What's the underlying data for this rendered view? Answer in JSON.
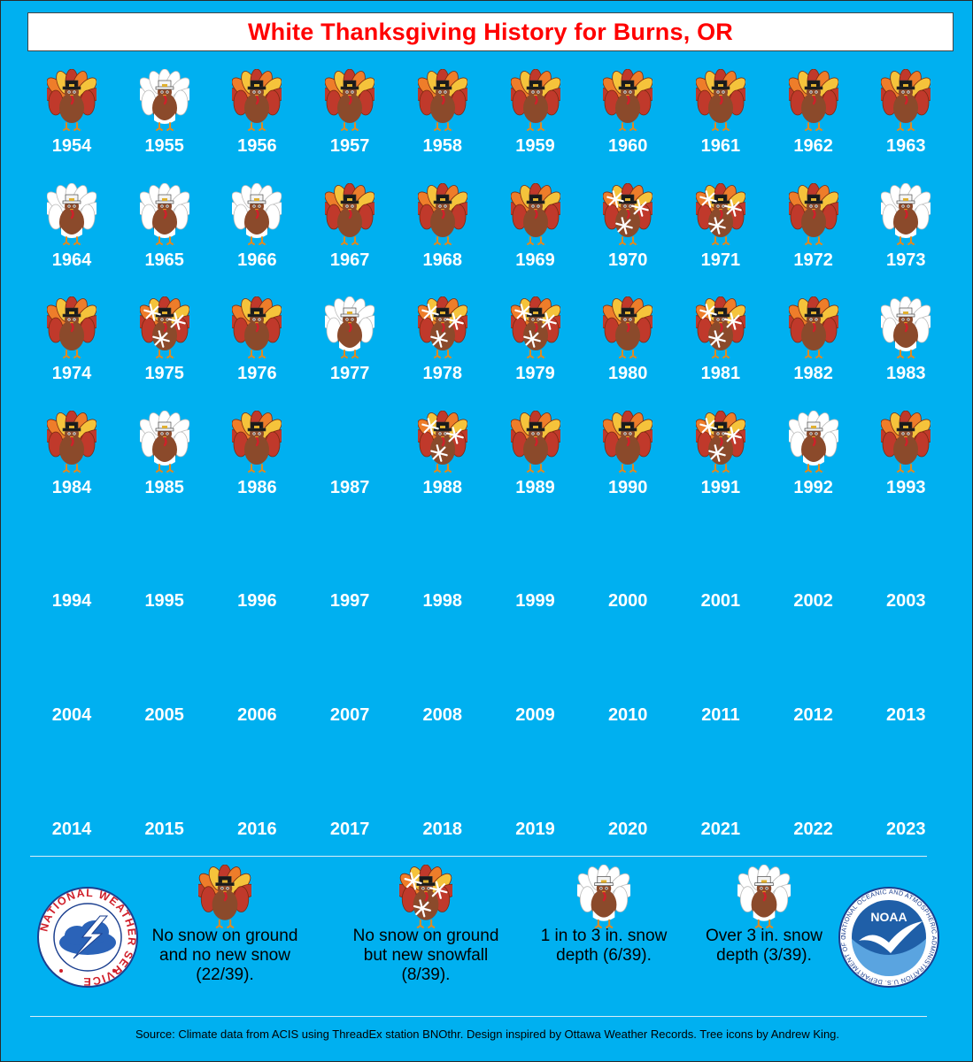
{
  "title": "White Thanksgiving History for Burns, OR",
  "years": [
    {
      "year": "1954",
      "cat": "none"
    },
    {
      "year": "1955",
      "cat": "over3"
    },
    {
      "year": "1956",
      "cat": "none"
    },
    {
      "year": "1957",
      "cat": "none"
    },
    {
      "year": "1958",
      "cat": "none"
    },
    {
      "year": "1959",
      "cat": "none"
    },
    {
      "year": "1960",
      "cat": "none"
    },
    {
      "year": "1961",
      "cat": "none"
    },
    {
      "year": "1962",
      "cat": "none"
    },
    {
      "year": "1963",
      "cat": "none"
    },
    {
      "year": "1964",
      "cat": "depth1to3"
    },
    {
      "year": "1965",
      "cat": "depth1to3"
    },
    {
      "year": "1966",
      "cat": "depth1to3"
    },
    {
      "year": "1967",
      "cat": "none"
    },
    {
      "year": "1968",
      "cat": "none"
    },
    {
      "year": "1969",
      "cat": "none"
    },
    {
      "year": "1970",
      "cat": "newsnow"
    },
    {
      "year": "1971",
      "cat": "newsnow"
    },
    {
      "year": "1972",
      "cat": "none"
    },
    {
      "year": "1973",
      "cat": "depth1to3"
    },
    {
      "year": "1974",
      "cat": "none"
    },
    {
      "year": "1975",
      "cat": "newsnow"
    },
    {
      "year": "1976",
      "cat": "none"
    },
    {
      "year": "1977",
      "cat": "over3"
    },
    {
      "year": "1978",
      "cat": "newsnow"
    },
    {
      "year": "1979",
      "cat": "newsnow"
    },
    {
      "year": "1980",
      "cat": "none"
    },
    {
      "year": "1981",
      "cat": "newsnow"
    },
    {
      "year": "1982",
      "cat": "none"
    },
    {
      "year": "1983",
      "cat": "depth1to3"
    },
    {
      "year": "1984",
      "cat": "none"
    },
    {
      "year": "1985",
      "cat": "over3"
    },
    {
      "year": "1986",
      "cat": "none"
    },
    {
      "year": "1987",
      "cat": "blank"
    },
    {
      "year": "1988",
      "cat": "newsnow"
    },
    {
      "year": "1989",
      "cat": "none"
    },
    {
      "year": "1990",
      "cat": "none"
    },
    {
      "year": "1991",
      "cat": "newsnow"
    },
    {
      "year": "1992",
      "cat": "depth1to3"
    },
    {
      "year": "1993",
      "cat": "none"
    },
    {
      "year": "1994",
      "cat": "blank"
    },
    {
      "year": "1995",
      "cat": "blank"
    },
    {
      "year": "1996",
      "cat": "blank"
    },
    {
      "year": "1997",
      "cat": "blank"
    },
    {
      "year": "1998",
      "cat": "blank"
    },
    {
      "year": "1999",
      "cat": "blank"
    },
    {
      "year": "2000",
      "cat": "blank"
    },
    {
      "year": "2001",
      "cat": "blank"
    },
    {
      "year": "2002",
      "cat": "blank"
    },
    {
      "year": "2003",
      "cat": "blank"
    },
    {
      "year": "2004",
      "cat": "blank"
    },
    {
      "year": "2005",
      "cat": "blank"
    },
    {
      "year": "2006",
      "cat": "blank"
    },
    {
      "year": "2007",
      "cat": "blank"
    },
    {
      "year": "2008",
      "cat": "blank"
    },
    {
      "year": "2009",
      "cat": "blank"
    },
    {
      "year": "2010",
      "cat": "blank"
    },
    {
      "year": "2011",
      "cat": "blank"
    },
    {
      "year": "2012",
      "cat": "blank"
    },
    {
      "year": "2013",
      "cat": "blank"
    },
    {
      "year": "2014",
      "cat": "blank"
    },
    {
      "year": "2015",
      "cat": "blank"
    },
    {
      "year": "2016",
      "cat": "blank"
    },
    {
      "year": "2017",
      "cat": "blank"
    },
    {
      "year": "2018",
      "cat": "blank"
    },
    {
      "year": "2019",
      "cat": "blank"
    },
    {
      "year": "2020",
      "cat": "blank"
    },
    {
      "year": "2021",
      "cat": "blank"
    },
    {
      "year": "2022",
      "cat": "blank"
    },
    {
      "year": "2023",
      "cat": "blank"
    }
  ],
  "legend": [
    {
      "cat": "none",
      "label": "No snow on ground and no new snow (22/39)."
    },
    {
      "cat": "newsnow",
      "label": "No snow on ground but new snowfall (8/39)."
    },
    {
      "cat": "depth1to3",
      "label": "1 in to 3 in. snow depth (6/39)."
    },
    {
      "cat": "over3",
      "label": "Over 3 in. snow depth (3/39)."
    }
  ],
  "logos": {
    "nws": "NATIONAL WEATHER SERVICE",
    "noaa": "NOAA",
    "noaa_ring": "NATIONAL OCEANIC AND ATMOSPHERIC ADMINISTRATION U.S. DEPARTMENT OF COMMERCE"
  },
  "colors": {
    "background": "#00b0f0",
    "title": "#ff0000",
    "turkey_body": "#8b4a2b",
    "feather_red": "#c0392b",
    "feather_orange": "#ee7d2a",
    "feather_yellow": "#f5c33b"
  },
  "source": "Source: Climate data from ACIS using ThreadEx station BNOthr. Design inspired by Ottawa Weather Records. Tree icons by Andrew King."
}
